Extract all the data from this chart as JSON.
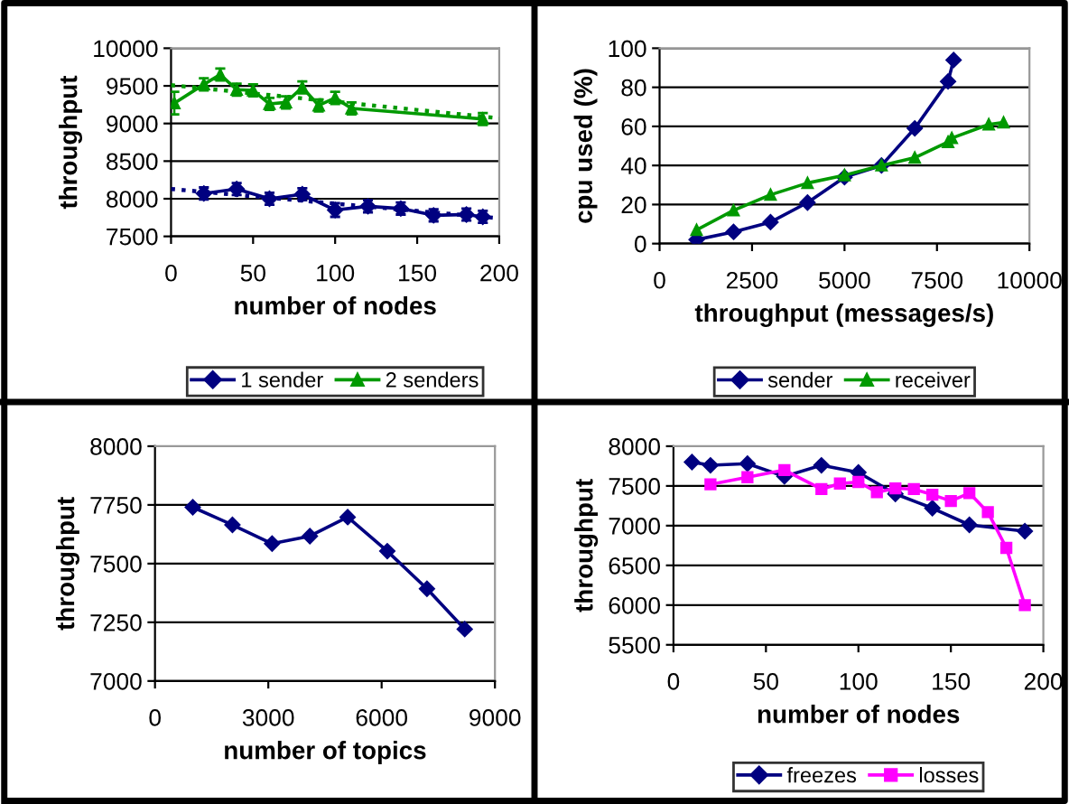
{
  "chart_data": [
    {
      "type": "line",
      "xlabel": "number of nodes",
      "ylabel": "throughput",
      "xlim": [
        0,
        200
      ],
      "xticks": [
        0,
        50,
        100,
        150,
        200
      ],
      "ylim": [
        7500,
        10000
      ],
      "yticks": [
        7500,
        8000,
        8500,
        9000,
        9500,
        10000
      ],
      "grid": "y",
      "legend": "bottom",
      "series": [
        {
          "name": "1 sender",
          "color": "#000080",
          "marker": "diamond",
          "x": [
            20,
            40,
            60,
            80,
            100,
            120,
            140,
            160,
            180,
            190
          ],
          "values": [
            8070,
            8130,
            8000,
            8060,
            7850,
            7900,
            7870,
            7780,
            7790,
            7760
          ],
          "errors": [
            80,
            80,
            80,
            80,
            90,
            80,
            80,
            80,
            80,
            80
          ]
        },
        {
          "name": "2 senders",
          "color": "#009900",
          "marker": "triangle",
          "x": [
            2,
            20,
            30,
            40,
            50,
            60,
            70,
            80,
            90,
            100,
            110,
            190
          ],
          "values": [
            9270,
            9520,
            9650,
            9450,
            9440,
            9260,
            9280,
            9480,
            9240,
            9340,
            9200,
            9060
          ],
          "errors": [
            150,
            80,
            80,
            80,
            80,
            80,
            80,
            80,
            80,
            80,
            80,
            80
          ]
        },
        {
          "color": "#000080",
          "marker": "none",
          "line_style": "dotted",
          "x": [
            0,
            200
          ],
          "values": [
            8130,
            7740
          ]
        },
        {
          "color": "#009900",
          "marker": "none",
          "line_style": "dotted",
          "x": [
            0,
            200
          ],
          "values": [
            9510,
            9070
          ]
        }
      ]
    },
    {
      "type": "line",
      "xlabel": "throughput (messages/s)",
      "ylabel": "cpu used (%)",
      "xlim": [
        0,
        10000
      ],
      "xticks": [
        0,
        2500,
        5000,
        7500,
        10000
      ],
      "ylim": [
        0,
        100
      ],
      "yticks": [
        0,
        20,
        40,
        60,
        80,
        100
      ],
      "grid": "y",
      "legend": "bottom",
      "series": [
        {
          "name": "sender",
          "color": "#000080",
          "marker": "diamond",
          "x": [
            1000,
            2000,
            3000,
            4000,
            5000,
            6000,
            6900,
            7800,
            7950
          ],
          "values": [
            2,
            6,
            11,
            21,
            34,
            40,
            59,
            83,
            94
          ]
        },
        {
          "name": "receiver",
          "color": "#009900",
          "marker": "triangle",
          "x": [
            1000,
            2000,
            3000,
            4000,
            5000,
            6000,
            6900,
            7800,
            7900,
            8900,
            9300
          ],
          "values": [
            7,
            17,
            25,
            31,
            35,
            40,
            44,
            52,
            54,
            61,
            62
          ]
        }
      ]
    },
    {
      "type": "line",
      "xlabel": "number of topics",
      "ylabel": "throughput",
      "xlim": [
        0,
        9000
      ],
      "xticks": [
        0,
        3000,
        6000,
        9000
      ],
      "ylim": [
        7000,
        8000
      ],
      "yticks": [
        7000,
        7250,
        7500,
        7750,
        8000
      ],
      "grid": "y",
      "series": [
        {
          "color": "#000080",
          "marker": "diamond",
          "x": [
            1000,
            2050,
            3100,
            4100,
            5100,
            6150,
            7200,
            8200
          ],
          "values": [
            7740,
            7665,
            7585,
            7617,
            7698,
            7553,
            7393,
            7221
          ]
        }
      ]
    },
    {
      "type": "line",
      "xlabel": "number of nodes",
      "ylabel": "throughput",
      "xlim": [
        0,
        200
      ],
      "xticks": [
        0,
        50,
        100,
        150,
        200
      ],
      "ylim": [
        5500,
        8000
      ],
      "yticks": [
        5500,
        6000,
        6500,
        7000,
        7500,
        8000
      ],
      "grid": "y",
      "legend": "bottom",
      "series": [
        {
          "name": "freezes",
          "color": "#000080",
          "marker": "diamond",
          "x": [
            10,
            20,
            40,
            60,
            80,
            100,
            120,
            140,
            160,
            190
          ],
          "values": [
            7800,
            7760,
            7780,
            7620,
            7760,
            7670,
            7400,
            7220,
            7010,
            6930
          ]
        },
        {
          "name": "losses",
          "color": "#ff00ff",
          "marker": "square",
          "x": [
            20,
            40,
            60,
            80,
            90,
            100,
            110,
            120,
            130,
            140,
            150,
            160,
            170,
            180,
            190
          ],
          "values": [
            7520,
            7610,
            7700,
            7460,
            7530,
            7550,
            7420,
            7470,
            7460,
            7390,
            7310,
            7410,
            7170,
            6720,
            6000
          ]
        }
      ]
    }
  ]
}
